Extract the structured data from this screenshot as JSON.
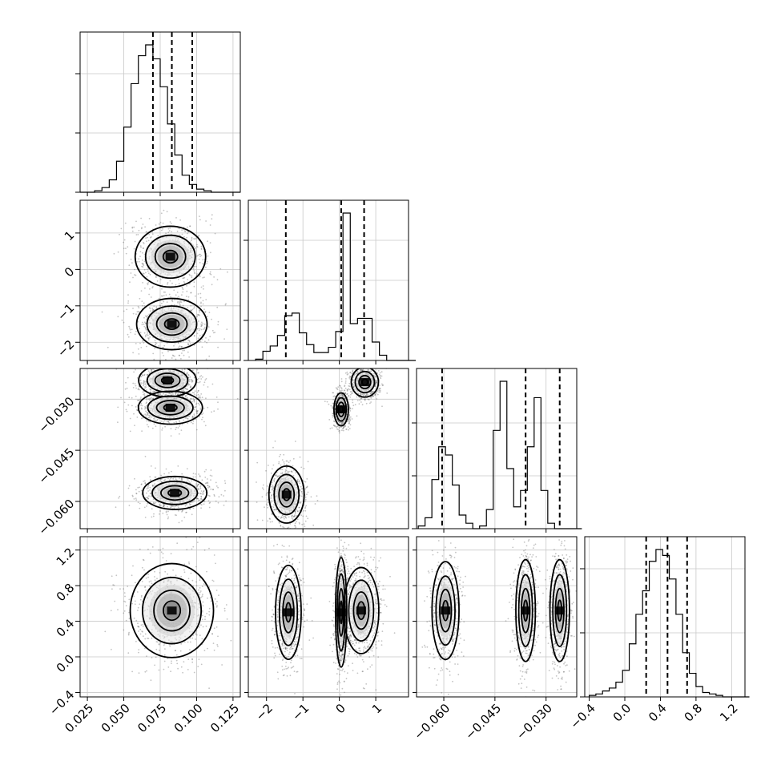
{
  "chart_data": {
    "type": "corner",
    "parameters": [
      {
        "range": [
          0.02,
          0.13
        ],
        "ticks": [
          0.025,
          0.05,
          0.075,
          0.1,
          0.125
        ],
        "tick_labels": [
          "0.025",
          "0.050",
          "0.075",
          "0.100",
          "0.125"
        ],
        "quantiles": [
          0.07,
          0.083,
          0.097
        ],
        "hist_edges_start": 0.02,
        "hist_bin": 0.005,
        "hist_counts": [
          0,
          0,
          1,
          3,
          8,
          20,
          42,
          70,
          88,
          95,
          86,
          68,
          44,
          24,
          11,
          5,
          2,
          1,
          0,
          0,
          0,
          0
        ],
        "hist_ticks_frac": [
          0.0,
          0.37,
          0.74
        ]
      },
      {
        "range": [
          -2.5,
          1.9
        ],
        "ticks": [
          -2,
          -1,
          0,
          1
        ],
        "tick_labels": [
          "−2",
          "−1",
          "0",
          "1"
        ],
        "quantiles": [
          -1.47,
          0.05,
          0.68
        ],
        "hist_edges_start": -2.3,
        "hist_bin": 0.2,
        "hist_counts": [
          1,
          7,
          11,
          19,
          34,
          36,
          21,
          12,
          6,
          6,
          10,
          22,
          112,
          28,
          32,
          32,
          14,
          4,
          0,
          0,
          0,
          0
        ],
        "hist_ticks_frac": [
          0.0,
          0.25,
          0.5,
          0.75
        ]
      },
      {
        "range": [
          -0.068,
          -0.021
        ],
        "ticks": [
          -0.06,
          -0.045,
          -0.03
        ],
        "tick_labels": [
          "−0.060",
          "−0.045",
          "−0.030"
        ],
        "quantiles": [
          -0.0605,
          -0.036,
          -0.026
        ],
        "hist_edges_start": -0.0675,
        "hist_bin": 0.002,
        "hist_counts": [
          2,
          8,
          36,
          60,
          54,
          32,
          10,
          4,
          0,
          2,
          14,
          72,
          108,
          44,
          16,
          28,
          60,
          96,
          28,
          4,
          0,
          0,
          0,
          0
        ],
        "hist_ticks_frac": [
          0.0,
          0.33,
          0.66
        ]
      },
      {
        "range": [
          -0.45,
          1.35
        ],
        "ticks": [
          -0.4,
          0.0,
          0.4,
          0.8,
          1.2
        ],
        "tick_labels": [
          "−0.4",
          "0.0",
          "0.4",
          "0.8",
          "1.2"
        ],
        "quantiles": [
          0.24,
          0.48,
          0.7
        ],
        "hist_edges_start": -0.4,
        "hist_bin": 0.075,
        "hist_counts": [
          1,
          2,
          4,
          6,
          10,
          18,
          36,
          56,
          72,
          92,
          100,
          96,
          80,
          56,
          30,
          16,
          7,
          3,
          2,
          1,
          0,
          0,
          0,
          0
        ],
        "hist_ticks_frac": [
          0.0,
          0.4,
          0.8
        ]
      }
    ],
    "y_ticks": {
      "1": {
        "values": [
          -2,
          -1,
          0,
          1
        ],
        "labels": [
          "−2",
          "−1",
          "0",
          "1"
        ]
      },
      "2": {
        "values": [
          -0.06,
          -0.045,
          -0.03
        ],
        "labels": [
          "−0.060",
          "−0.045",
          "−0.030"
        ]
      },
      "3": {
        "values": [
          0.0,
          0.4,
          0.8,
          1.2
        ],
        "labels": [
          "0.0",
          "0.4",
          "0.8",
          "1.2"
        ],
        "extra": [
          {
            "value": -0.4,
            "label": "−0.4"
          }
        ]
      }
    },
    "joint_modes": {
      "1_0": [
        [
          0.082,
          0.35,
          0.011,
          0.38,
          0.6
        ],
        [
          0.083,
          -1.5,
          0.011,
          0.32,
          0.4
        ]
      ],
      "2_0": [
        [
          0.08,
          -0.0245,
          0.009,
          0.0022,
          0.34
        ],
        [
          0.082,
          -0.0325,
          0.01,
          0.0022,
          0.34
        ],
        [
          0.085,
          -0.0575,
          0.01,
          0.0022,
          0.32
        ]
      ],
      "2_1": [
        [
          0.7,
          -0.025,
          0.17,
          0.002,
          0.3
        ],
        [
          0.05,
          -0.033,
          0.09,
          0.0022,
          0.34
        ],
        [
          -1.45,
          -0.058,
          0.22,
          0.0038,
          0.36
        ]
      ],
      "3_0": [
        [
          0.083,
          0.52,
          0.013,
          0.24,
          1.0
        ]
      ],
      "3_1": [
        [
          -1.4,
          0.5,
          0.16,
          0.24,
          0.36
        ],
        [
          0.05,
          0.5,
          0.07,
          0.28,
          0.34
        ],
        [
          0.6,
          0.52,
          0.22,
          0.22,
          0.3
        ]
      ],
      "3_2": [
        [
          -0.0595,
          0.52,
          0.0018,
          0.25,
          0.36
        ],
        [
          -0.036,
          0.52,
          0.0013,
          0.26,
          0.32
        ],
        [
          -0.026,
          0.52,
          0.0013,
          0.26,
          0.32
        ]
      ]
    }
  }
}
